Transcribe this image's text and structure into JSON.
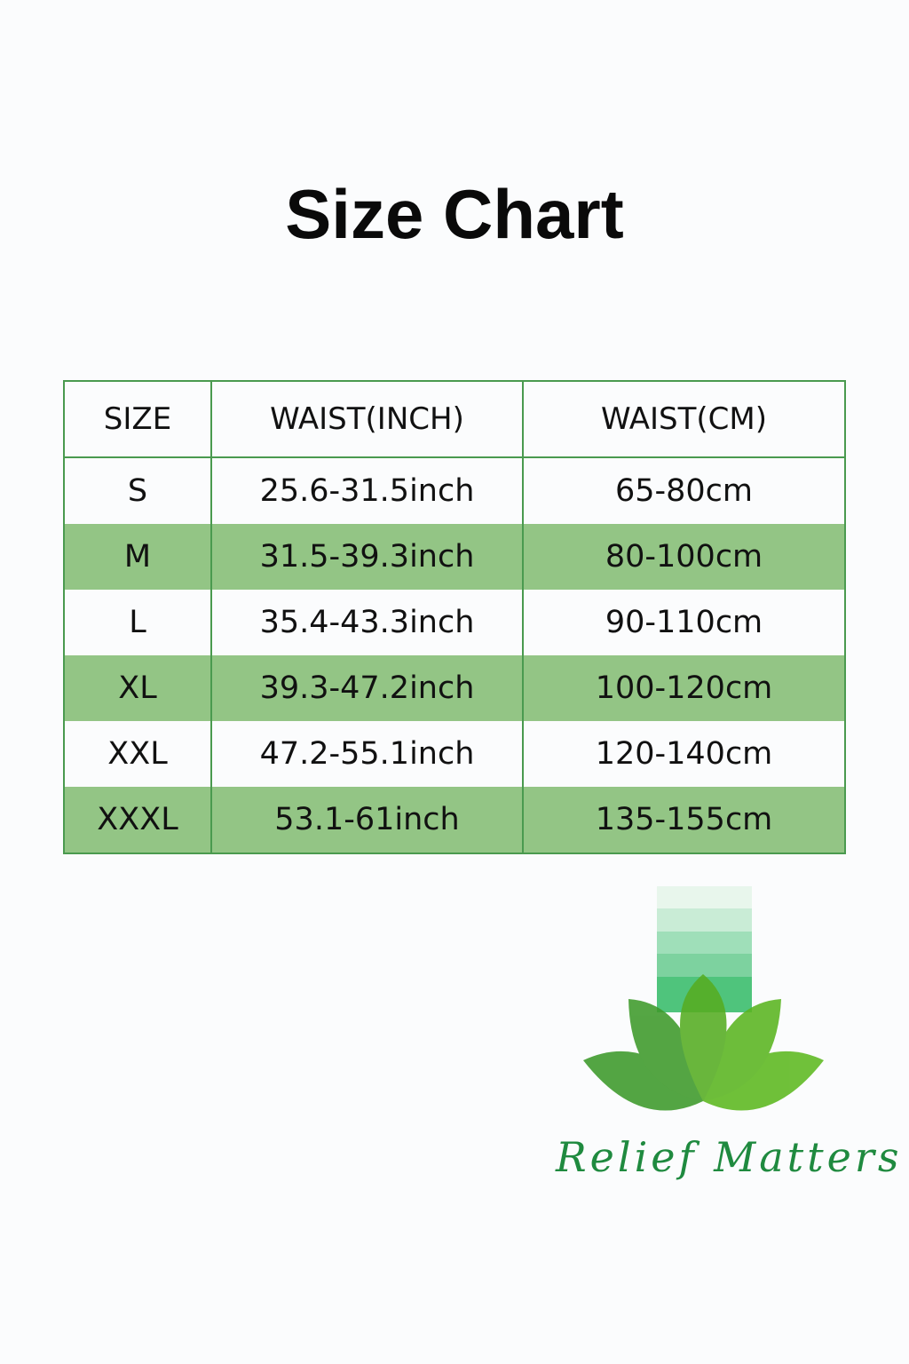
{
  "title": "Size Chart",
  "table": {
    "headers": [
      "SIZE",
      "WAIST(INCH)",
      "WAIST(CM)"
    ],
    "rows": [
      [
        "S",
        "25.6-31.5inch",
        "65-80cm"
      ],
      [
        "M",
        "31.5-39.3inch",
        "80-100cm"
      ],
      [
        "L",
        "35.4-43.3inch",
        "90-110cm"
      ],
      [
        "XL",
        "39.3-47.2inch",
        "100-120cm"
      ],
      [
        "XXL",
        "47.2-55.1inch",
        "120-140cm"
      ],
      [
        "XXXL",
        "53.1-61inch",
        "135-155cm"
      ]
    ]
  },
  "brand": {
    "name": "Relief Matters"
  },
  "colors": {
    "row_highlight": "#93c585",
    "border": "#4a9a4f",
    "brand_text": "#1f8a3f"
  }
}
